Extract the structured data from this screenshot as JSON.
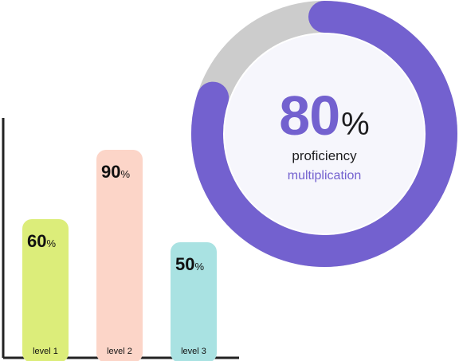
{
  "chart_data": [
    {
      "type": "pie",
      "value": 80,
      "unit": "%",
      "label": "proficiency",
      "sublabel": "multiplication",
      "colors": {
        "filled": "#7361cf",
        "track": "#cccccc",
        "center": "#f6f6fc",
        "text": "#7361cf"
      }
    },
    {
      "type": "bar",
      "categories": [
        "level 1",
        "level 2",
        "level 3"
      ],
      "values": [
        60,
        90,
        50
      ],
      "value_suffix": "%",
      "colors": [
        "#dced7a",
        "#fcd5c8",
        "#a9e2e2"
      ],
      "axis_color": "#222222"
    }
  ]
}
